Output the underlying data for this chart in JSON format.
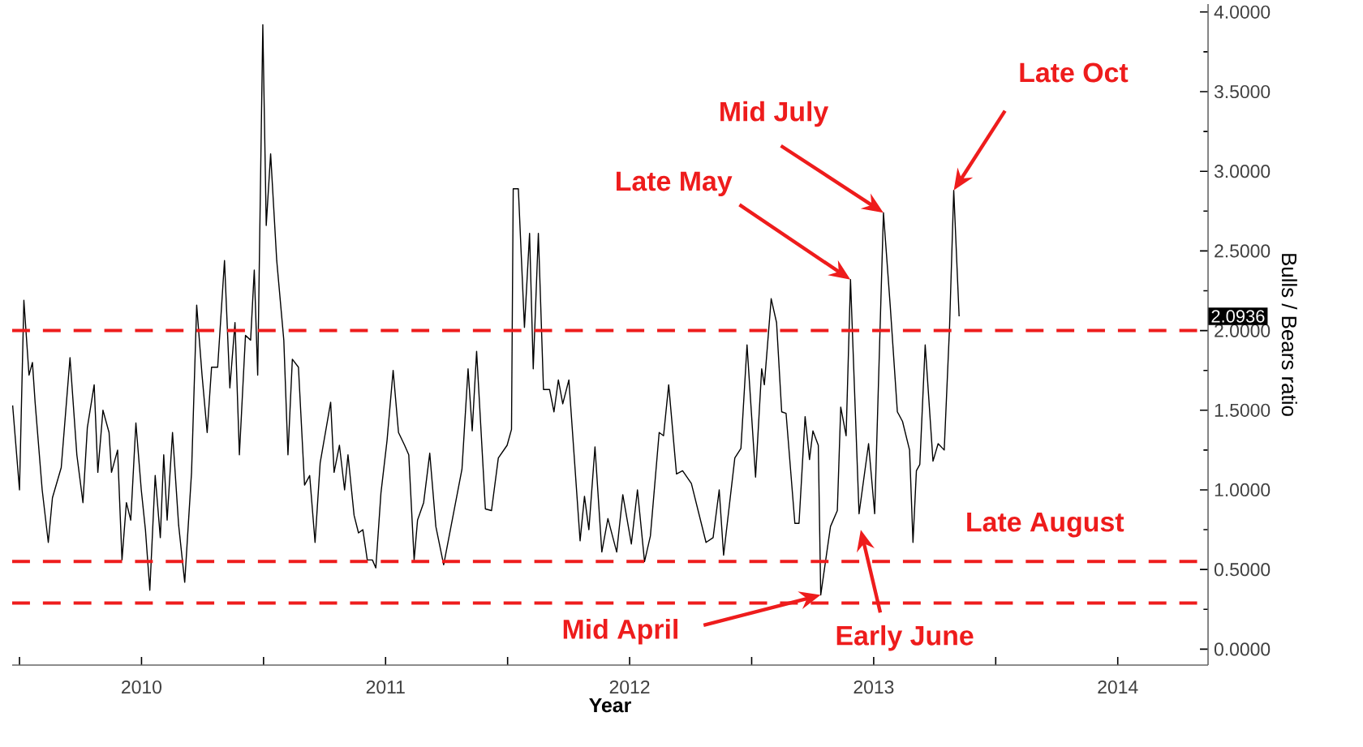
{
  "chart_data": {
    "type": "line",
    "xlabel": "Year",
    "ylabel": "Bulls / Bears ratio",
    "color": "#000000",
    "x": [
      2009.972,
      2010.0,
      2010.018,
      2010.039,
      2010.053,
      2010.064,
      2010.093,
      2010.118,
      2010.135,
      2010.171,
      2010.207,
      2010.235,
      2010.26,
      2010.278,
      2010.306,
      2010.321,
      2010.342,
      2010.367,
      2010.377,
      2010.402,
      2010.42,
      2010.438,
      2010.456,
      2010.477,
      2010.499,
      2010.516,
      2010.534,
      2010.556,
      2010.577,
      2010.591,
      2010.605,
      2010.627,
      2010.652,
      2010.677,
      2010.705,
      2010.726,
      2010.748,
      2010.769,
      2010.787,
      2010.812,
      2010.84,
      2010.862,
      2010.883,
      2010.901,
      2010.926,
      2010.947,
      2010.962,
      2010.976,
      2010.997,
      2011.011,
      2011.029,
      2011.054,
      2011.083,
      2011.1,
      2011.118,
      2011.143,
      2011.168,
      2011.189,
      2011.211,
      2011.232,
      2011.275,
      2011.289,
      2011.311,
      2011.332,
      2011.346,
      2011.371,
      2011.389,
      2011.407,
      2011.425,
      2011.446,
      2011.46,
      2011.481,
      2011.506,
      2011.531,
      2011.553,
      2011.578,
      2011.595,
      2011.617,
      2011.631,
      2011.656,
      2011.681,
      2011.706,
      2011.738,
      2011.813,
      2011.838,
      2011.855,
      2011.873,
      2011.909,
      2011.934,
      2011.962,
      2011.998,
      2012.016,
      2012.023,
      2012.044,
      2012.069,
      2012.09,
      2012.105,
      2012.126,
      2012.147,
      2012.172,
      2012.19,
      2012.208,
      2012.226,
      2012.251,
      2012.297,
      2012.315,
      2012.333,
      2012.358,
      2012.386,
      2012.411,
      2012.447,
      2012.472,
      2012.507,
      2012.532,
      2012.561,
      2012.585,
      2012.621,
      2012.639,
      2012.66,
      2012.692,
      2012.717,
      2012.753,
      2012.813,
      2012.842,
      2012.867,
      2012.885,
      2012.931,
      2012.956,
      2012.981,
      2013.016,
      2013.041,
      2013.052,
      2013.08,
      2013.102,
      2013.123,
      2013.141,
      2013.177,
      2013.194,
      2013.219,
      2013.237,
      2013.251,
      2013.273,
      2013.283,
      2013.323,
      2013.351,
      2013.365,
      2013.387,
      2013.405,
      2013.44,
      2013.479,
      2013.504,
      2013.54,
      2013.568,
      2013.597,
      2013.618,
      2013.647,
      2013.661,
      2013.675,
      2013.689,
      2013.711,
      2013.743,
      2013.764,
      2013.789,
      2013.811,
      2013.828,
      2013.85
    ],
    "values": [
      1.53,
      1.0,
      2.19,
      1.72,
      1.8,
      1.55,
      1.0,
      0.67,
      0.95,
      1.14,
      1.83,
      1.22,
      0.92,
      1.39,
      1.66,
      1.11,
      1.5,
      1.36,
      1.11,
      1.25,
      0.56,
      0.92,
      0.81,
      1.42,
      1.0,
      0.75,
      0.37,
      1.09,
      0.7,
      1.22,
      0.81,
      1.36,
      0.78,
      0.42,
      1.11,
      2.16,
      1.72,
      1.36,
      1.77,
      1.77,
      2.44,
      1.64,
      2.05,
      1.22,
      1.97,
      1.94,
      2.38,
      1.72,
      3.92,
      2.66,
      3.11,
      2.44,
      1.94,
      1.22,
      1.82,
      1.77,
      1.03,
      1.09,
      0.67,
      1.17,
      1.55,
      1.11,
      1.28,
      1.0,
      1.22,
      0.84,
      0.73,
      0.75,
      0.56,
      0.56,
      0.51,
      0.98,
      1.31,
      1.75,
      1.36,
      1.28,
      1.22,
      0.56,
      0.81,
      0.92,
      1.23,
      0.77,
      0.53,
      1.13,
      1.76,
      1.37,
      1.87,
      0.88,
      0.87,
      1.2,
      1.28,
      1.38,
      2.89,
      2.89,
      2.02,
      2.61,
      1.76,
      2.61,
      1.63,
      1.63,
      1.49,
      1.69,
      1.54,
      1.69,
      0.68,
      0.96,
      0.75,
      1.27,
      0.61,
      0.82,
      0.61,
      0.97,
      0.66,
      1.0,
      0.55,
      0.71,
      1.36,
      1.34,
      1.66,
      1.1,
      1.12,
      1.04,
      0.67,
      0.7,
      1.0,
      0.59,
      1.2,
      1.26,
      1.91,
      1.08,
      1.76,
      1.66,
      2.2,
      2.05,
      1.49,
      1.48,
      0.79,
      0.79,
      1.46,
      1.19,
      1.37,
      1.28,
      0.34,
      0.77,
      0.87,
      1.52,
      1.34,
      2.32,
      0.85,
      1.29,
      0.85,
      2.74,
      2.15,
      1.49,
      1.43,
      1.25,
      0.67,
      1.12,
      1.16,
      1.91,
      1.18,
      1.29,
      1.25,
      2.03,
      2.88,
      2.09
    ],
    "xlim": [
      2009.97,
      2014.87
    ],
    "xticks": [
      {
        "value": 2010,
        "label": null
      },
      {
        "value": 2010.5,
        "label": "2010"
      },
      {
        "value": 2011,
        "label": null
      },
      {
        "value": 2011.5,
        "label": "2011"
      },
      {
        "value": 2012,
        "label": null
      },
      {
        "value": 2012.5,
        "label": "2012"
      },
      {
        "value": 2013,
        "label": null
      },
      {
        "value": 2013.5,
        "label": "2013"
      },
      {
        "value": 2014,
        "label": null
      },
      {
        "value": 2014.5,
        "label": "2014"
      }
    ],
    "ylim": [
      -0.1,
      4.05
    ],
    "yticks": [
      {
        "value": 0,
        "label": "0.0000"
      },
      {
        "value": 0.5,
        "label": "0.5000"
      },
      {
        "value": 1,
        "label": "1.0000"
      },
      {
        "value": 1.5,
        "label": "1.5000"
      },
      {
        "value": 2,
        "label": "2.0000"
      },
      {
        "value": 2.5,
        "label": "2.5000"
      },
      {
        "value": 3,
        "label": "3.0000"
      },
      {
        "value": 3.5,
        "label": "3.5000"
      },
      {
        "value": 4,
        "label": "4.0000"
      }
    ],
    "ref_lines": [
      {
        "axis": "y",
        "value": 2.0,
        "color": "#ee1c1c",
        "line_style": "dashed"
      },
      {
        "axis": "y",
        "value": 0.55,
        "color": "#ee1c1c",
        "line_style": "dashed"
      },
      {
        "axis": "y",
        "value": 0.29,
        "color": "#ee1c1c",
        "line_style": "dashed"
      }
    ],
    "annotations": [
      "Late May",
      "Mid July",
      "Late Oct",
      "Mid April",
      "Early June",
      "Late August",
      "2.0936"
    ],
    "grid": false,
    "marker": "none",
    "line_style": "solid"
  }
}
